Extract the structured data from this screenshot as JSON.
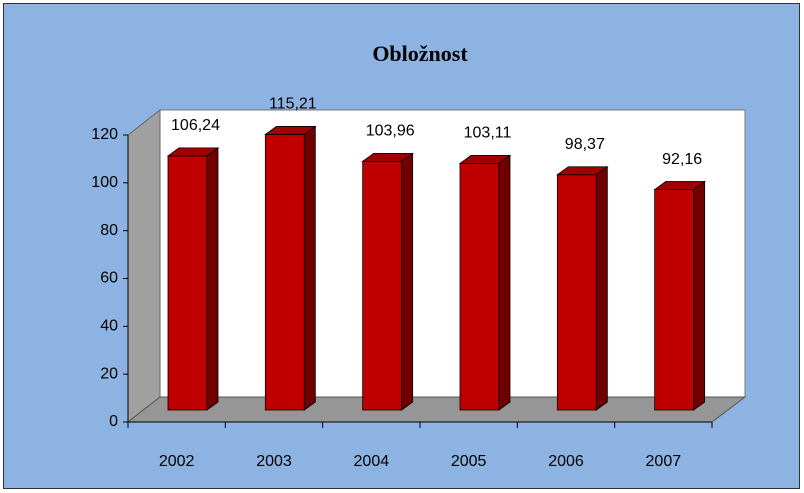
{
  "chart_data": {
    "type": "bar3d",
    "title": "Obložnost",
    "categories": [
      "2002",
      "2003",
      "2004",
      "2005",
      "2006",
      "2007"
    ],
    "values": [
      106.24,
      115.21,
      103.96,
      103.11,
      98.37,
      92.16
    ],
    "value_labels": [
      "106,24",
      "115,21",
      "103,96",
      "103,11",
      "98,37",
      "92,16"
    ],
    "color": "#c00000",
    "ylim": [
      0,
      120
    ],
    "yticks": [
      0,
      20,
      40,
      60,
      80,
      100,
      120
    ]
  }
}
